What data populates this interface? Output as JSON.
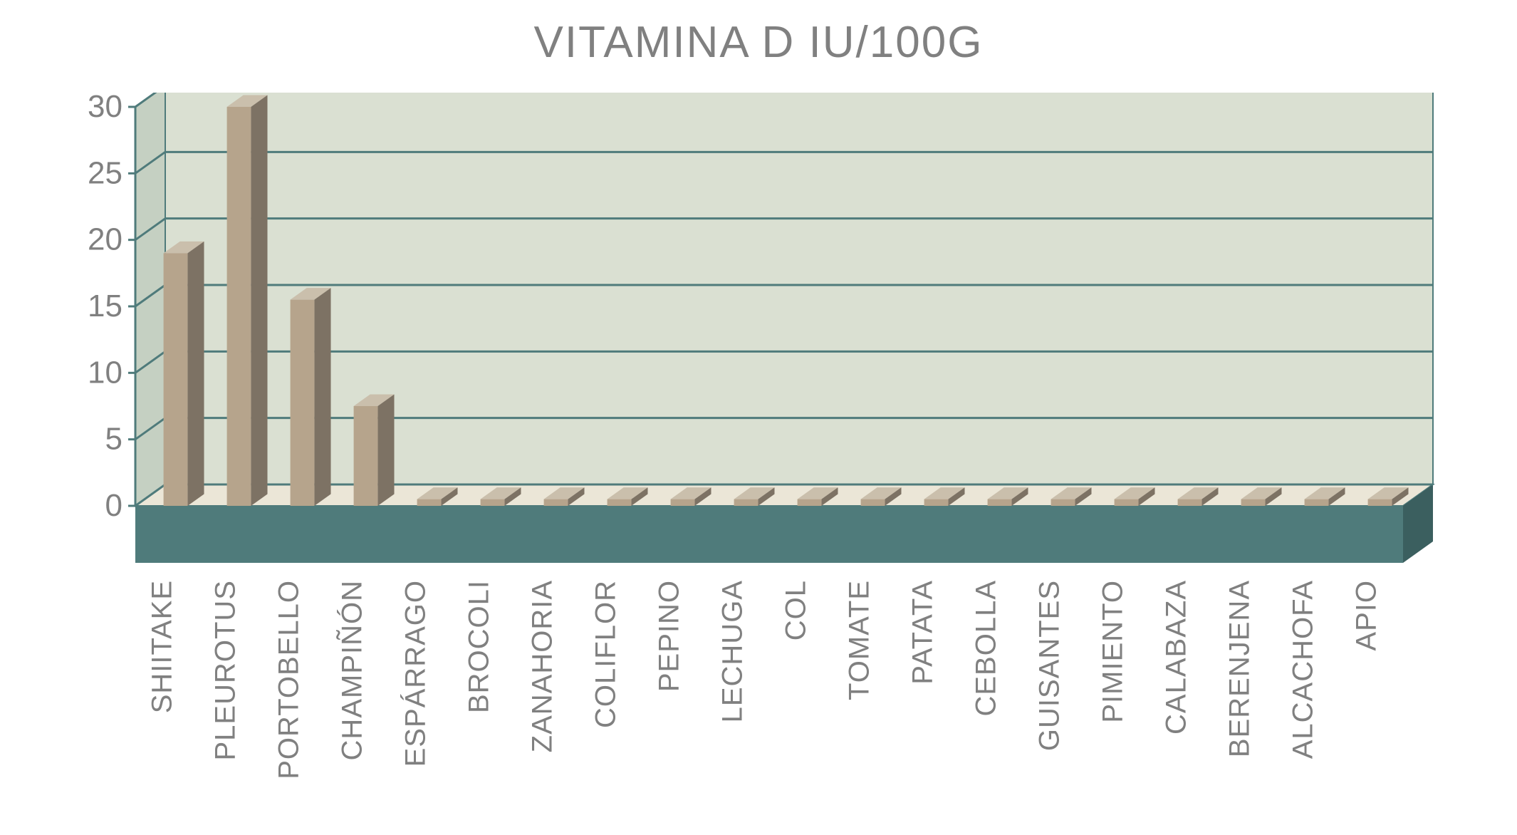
{
  "chart": {
    "type": "bar-3d",
    "title": "VITAMINA D IU/100G",
    "title_fontsize": 62,
    "title_color": "#808080",
    "categories": [
      "SHIITAKE",
      "PLEUROTUS",
      "PORTOBELLO",
      "CHAMPIÑÓN",
      "ESPÁRRAGO",
      "BROCOLI",
      "ZANAHORIA",
      "COLIFLOR",
      "PEPINO",
      "LECHUGA",
      "COL",
      "TOMATE",
      "PATATA",
      "CEBOLLA",
      "GUISANTES",
      "PIMIENTO",
      "CALABAZA",
      "BERENJENA",
      "ALCACHOFA",
      "APIO"
    ],
    "values": [
      19,
      30,
      15.5,
      7.5,
      0.5,
      0.5,
      0.5,
      0.5,
      0.5,
      0.5,
      0.5,
      0.5,
      0.5,
      0.5,
      0.5,
      0.5,
      0.5,
      0.5,
      0.5,
      0.5
    ],
    "bar_front_color": "#b6a48c",
    "bar_side_color": "#7d7264",
    "bar_top_color": "#cabfac",
    "floor_color": "#ebe6d7",
    "floor_front_color": "#4f7b7b",
    "floor_side_color": "#3b5f5f",
    "back_wall_color": "#dae0d2",
    "side_wall_color": "#c5d0c2",
    "gridline_color": "#4f7b7b",
    "axis_label_color": "#808080",
    "tick_label_color": "#808080",
    "ylim": [
      0,
      30
    ],
    "ytick_step": 5,
    "yticks": [
      0,
      5,
      10,
      15,
      20,
      25,
      30
    ],
    "label_fontsize": 40,
    "tick_fontsize": 44,
    "bar_width_ratio": 0.38,
    "depth_x": 42,
    "depth_y": 30,
    "background_color": "#ffffff"
  }
}
